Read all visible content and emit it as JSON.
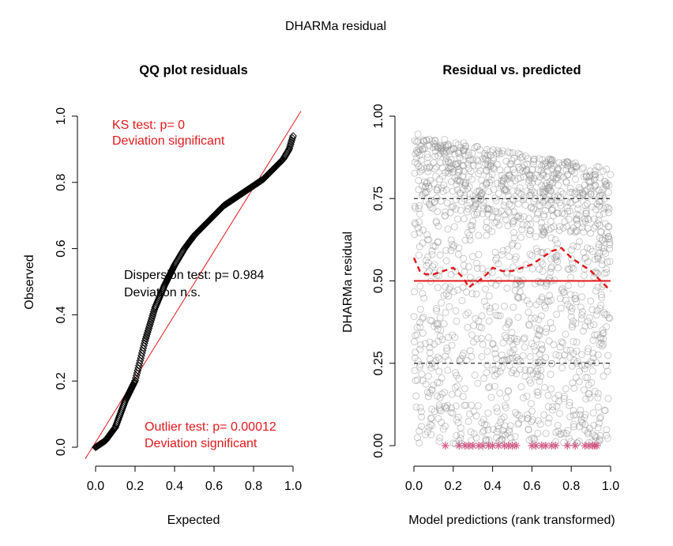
{
  "figure": {
    "title": "DHARMa residual"
  },
  "colors": {
    "black": "#000000",
    "red": "#e0191c",
    "grey_point": "#8c8c8c",
    "outlier": "#d05b86"
  },
  "chart_data": [
    {
      "type": "scatter",
      "title": "QQ plot residuals",
      "xlabel": "Expected",
      "ylabel": "Observed",
      "xlim": [
        0,
        1
      ],
      "ylim": [
        0,
        1
      ],
      "xticks": [
        "0.0",
        "0.2",
        "0.4",
        "0.6",
        "0.8",
        "1.0"
      ],
      "yticks": [
        "0.0",
        "0.2",
        "0.4",
        "0.6",
        "0.8",
        "1.0"
      ],
      "grid": false,
      "reference_line": {
        "type": "identity",
        "color": "#e0191c"
      },
      "series": [
        {
          "marker": "diamond",
          "color": "#000000",
          "x": [
            0.0,
            0.05,
            0.1,
            0.15,
            0.2,
            0.25,
            0.3,
            0.35,
            0.4,
            0.45,
            0.5,
            0.55,
            0.6,
            0.65,
            0.7,
            0.75,
            0.8,
            0.85,
            0.9,
            0.95,
            0.98,
            1.0
          ],
          "y": [
            0.0,
            0.02,
            0.06,
            0.14,
            0.2,
            0.32,
            0.42,
            0.49,
            0.55,
            0.6,
            0.64,
            0.67,
            0.7,
            0.73,
            0.75,
            0.77,
            0.79,
            0.81,
            0.84,
            0.87,
            0.9,
            0.94
          ]
        }
      ],
      "annotations": [
        {
          "text": "KS test: p= 0",
          "color": "#e0191c"
        },
        {
          "text": "Deviation  significant",
          "color": "#e0191c"
        },
        {
          "text": "Dispersion test: p= 0.984",
          "color": "#000000"
        },
        {
          "text": "Deviation  n.s.",
          "color": "#000000"
        },
        {
          "text": "Outlier test: p= 0.00012",
          "color": "#e0191c"
        },
        {
          "text": "Deviation  significant",
          "color": "#e0191c"
        }
      ]
    },
    {
      "type": "scatter",
      "title": "Residual vs. predicted",
      "xlabel": "Model predictions (rank transformed)",
      "ylabel": "DHARMa residual",
      "xlim": [
        0,
        1
      ],
      "ylim": [
        0,
        1
      ],
      "xticks": [
        "0.0",
        "0.2",
        "0.4",
        "0.6",
        "0.8",
        "1.0"
      ],
      "yticks": [
        "0.00",
        "0.25",
        "0.50",
        "0.75",
        "1.00"
      ],
      "grid": false,
      "hlines": [
        {
          "y": 0.25,
          "style": "dashed",
          "color": "#000000"
        },
        {
          "y": 0.5,
          "style": "solid",
          "color": "#e0191c"
        },
        {
          "y": 0.75,
          "style": "dashed",
          "color": "#000000"
        }
      ],
      "smoother": {
        "color": "#e0191c",
        "style": "dashed",
        "x": [
          0.0,
          0.03,
          0.06,
          0.1,
          0.15,
          0.2,
          0.25,
          0.28,
          0.3,
          0.33,
          0.37,
          0.4,
          0.45,
          0.5,
          0.55,
          0.6,
          0.65,
          0.7,
          0.75,
          0.8,
          0.85,
          0.9,
          0.95,
          1.0
        ],
        "y": [
          0.57,
          0.53,
          0.52,
          0.52,
          0.53,
          0.54,
          0.51,
          0.48,
          0.49,
          0.5,
          0.52,
          0.54,
          0.53,
          0.53,
          0.54,
          0.55,
          0.57,
          0.59,
          0.6,
          0.57,
          0.55,
          0.53,
          0.5,
          0.47
        ]
      },
      "points_description": "about 2000 grey open-circle residuals spread across 0-1, denser near 0.75-0.95 at low/mid predictions",
      "outliers": {
        "marker": "asterisk",
        "color": "#d05b86",
        "y": 0,
        "x": [
          0.16,
          0.23,
          0.26,
          0.28,
          0.3,
          0.33,
          0.35,
          0.38,
          0.4,
          0.43,
          0.46,
          0.48,
          0.5,
          0.52,
          0.6,
          0.62,
          0.65,
          0.67,
          0.7,
          0.72,
          0.78,
          0.82,
          0.87,
          0.89,
          0.91,
          0.92,
          0.93
        ]
      }
    }
  ]
}
